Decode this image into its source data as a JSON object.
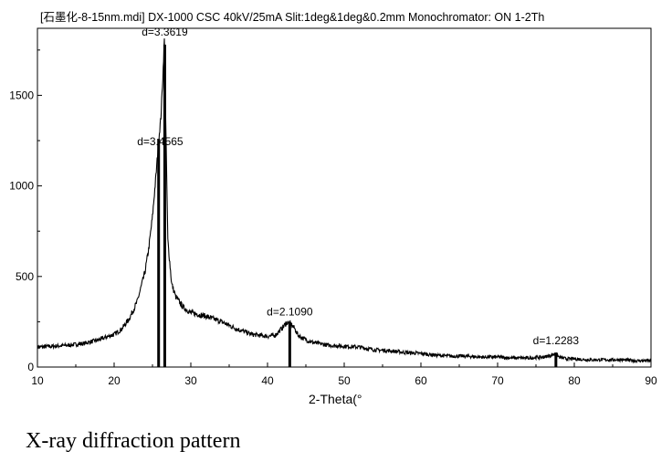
{
  "header": "[石墨化-8-15nm.mdi] DX-1000 CSC 40kV/25mA Slit:1deg&1deg&0.2mm Monochromator: ON 1-2Th",
  "caption": "X-ray diffraction pattern",
  "chart_data": {
    "type": "line",
    "title": "[石墨化-8-15nm.mdi] DX-1000 CSC 40kV/25mA Slit:1deg&1deg&0.2mm Monochromator: ON 1-2Th",
    "xlabel": "2-Theta(°",
    "ylabel": "",
    "xlim": [
      10,
      90
    ],
    "ylim": [
      0,
      1870
    ],
    "xticks": [
      10,
      20,
      30,
      40,
      50,
      60,
      70,
      80,
      90
    ],
    "yticks": [
      0,
      500,
      1000,
      1500
    ],
    "grid": false,
    "series": [
      {
        "x": [
          10,
          12,
          14,
          16,
          18,
          20,
          21,
          22,
          23,
          24,
          24.5,
          25,
          25.5,
          25.8,
          26.1,
          26.35,
          26.55,
          26.75,
          27,
          27.5,
          28,
          29,
          30,
          32,
          34,
          36,
          38,
          40,
          41,
          42,
          42.5,
          43,
          43.5,
          44,
          45,
          46,
          48,
          50,
          52,
          54,
          56,
          58,
          60,
          62,
          64,
          66,
          68,
          70,
          72,
          74,
          76,
          77,
          77.6,
          78,
          79,
          80,
          82,
          84,
          86,
          88,
          90
        ],
        "y": [
          110,
          115,
          120,
          130,
          150,
          180,
          210,
          270,
          360,
          520,
          650,
          830,
          1080,
          1250,
          1380,
          1600,
          1810,
          1300,
          700,
          460,
          390,
          330,
          300,
          280,
          250,
          210,
          180,
          170,
          175,
          220,
          245,
          240,
          215,
          175,
          150,
          135,
          120,
          115,
          110,
          95,
          90,
          80,
          75,
          65,
          60,
          60,
          55,
          55,
          50,
          50,
          55,
          65,
          75,
          55,
          45,
          45,
          40,
          40,
          40,
          35,
          35
        ]
      }
    ],
    "reference_peaks": [
      {
        "x": 25.8,
        "height": 1260,
        "label": ""
      },
      {
        "x": 26.6,
        "height": 1780,
        "label": "d=3.3619"
      },
      {
        "x": 42.9,
        "height": 240,
        "label": "d=2.1090"
      },
      {
        "x": 77.6,
        "height": 80,
        "label": "d=1.2283"
      }
    ],
    "annotations": [
      {
        "text": "d=3.3619",
        "x": 26.6,
        "y": 1830
      },
      {
        "text": "d=3.4565",
        "x": 26.0,
        "y": 1225
      },
      {
        "text": "d=2.1090",
        "x": 42.9,
        "y": 285
      },
      {
        "text": "d=1.2283",
        "x": 77.6,
        "y": 127
      }
    ]
  }
}
